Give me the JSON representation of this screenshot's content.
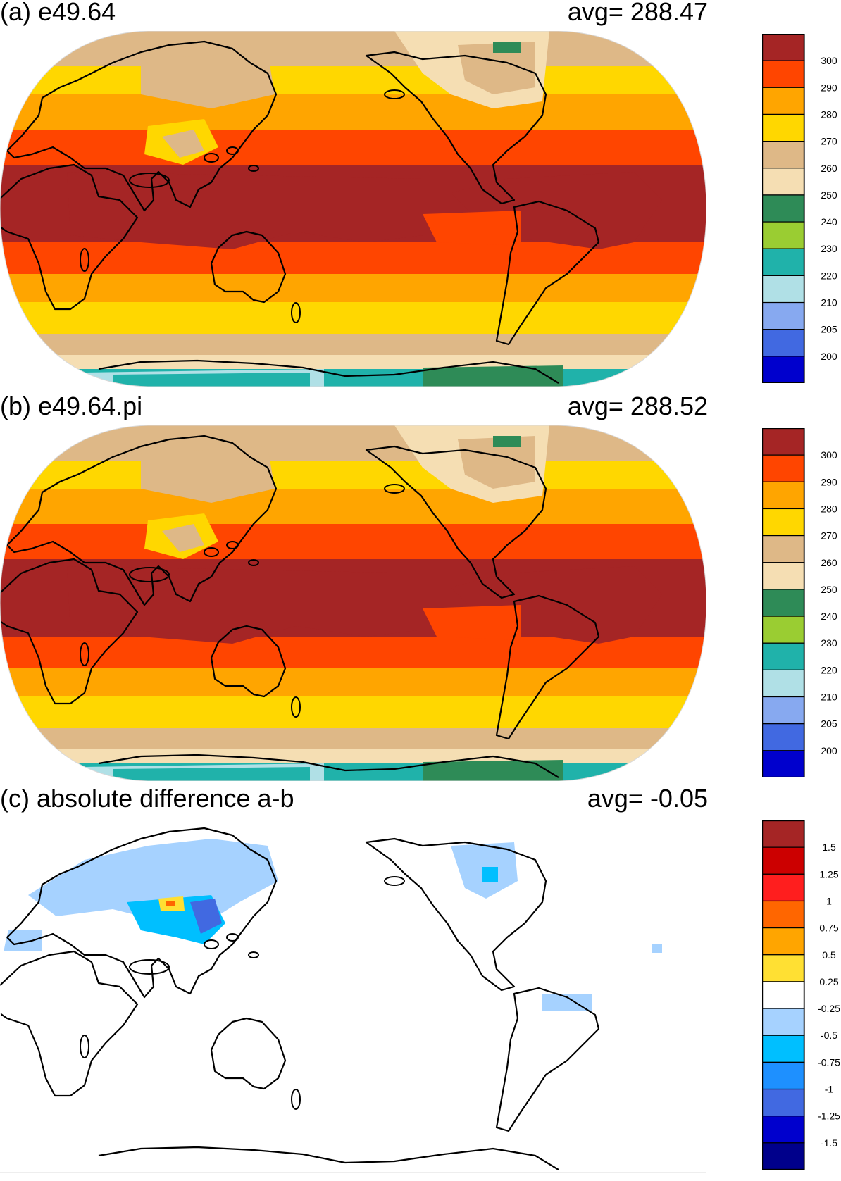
{
  "panels": [
    {
      "id": "a",
      "title": "(a) e49.64",
      "avg": "avg=  288.47",
      "map_type": "absolute",
      "legend": {
        "colors": [
          "#a52525",
          "#ff4500",
          "#ffa500",
          "#ffd700",
          "#deb887",
          "#f5deb3",
          "#2e8b57",
          "#9acd32",
          "#20b2aa",
          "#b0e0e6",
          "#87a9f0",
          "#4169e1",
          "#0000cd"
        ],
        "labels": [
          "300",
          "290",
          "280",
          "270",
          "260",
          "250",
          "240",
          "230",
          "220",
          "210",
          "205",
          "200"
        ]
      }
    },
    {
      "id": "b",
      "title": "(b) e49.64.pi",
      "avg": "avg=  288.52",
      "map_type": "absolute",
      "legend": {
        "colors": [
          "#a52525",
          "#ff4500",
          "#ffa500",
          "#ffd700",
          "#deb887",
          "#f5deb3",
          "#2e8b57",
          "#9acd32",
          "#20b2aa",
          "#b0e0e6",
          "#87a9f0",
          "#4169e1",
          "#0000cd"
        ],
        "labels": [
          "300",
          "290",
          "280",
          "270",
          "260",
          "250",
          "240",
          "230",
          "220",
          "210",
          "205",
          "200"
        ]
      }
    },
    {
      "id": "c",
      "title": "(c) absolute difference a-b",
      "avg": "avg=   -0.05",
      "map_type": "difference",
      "legend": {
        "colors": [
          "#a52525",
          "#cc0000",
          "#ff1e1e",
          "#ff6600",
          "#ffa500",
          "#ffe033",
          "#ffffff",
          "#a6d2ff",
          "#00bfff",
          "#1e90ff",
          "#4169e1",
          "#0000cd",
          "#00008b"
        ],
        "labels": [
          "1.5",
          "1.25",
          "1",
          "0.75",
          "0.5",
          "0.25",
          "-0.25",
          "-0.5",
          "-0.75",
          "-1",
          "-1.25",
          "-1.5"
        ]
      }
    }
  ]
}
